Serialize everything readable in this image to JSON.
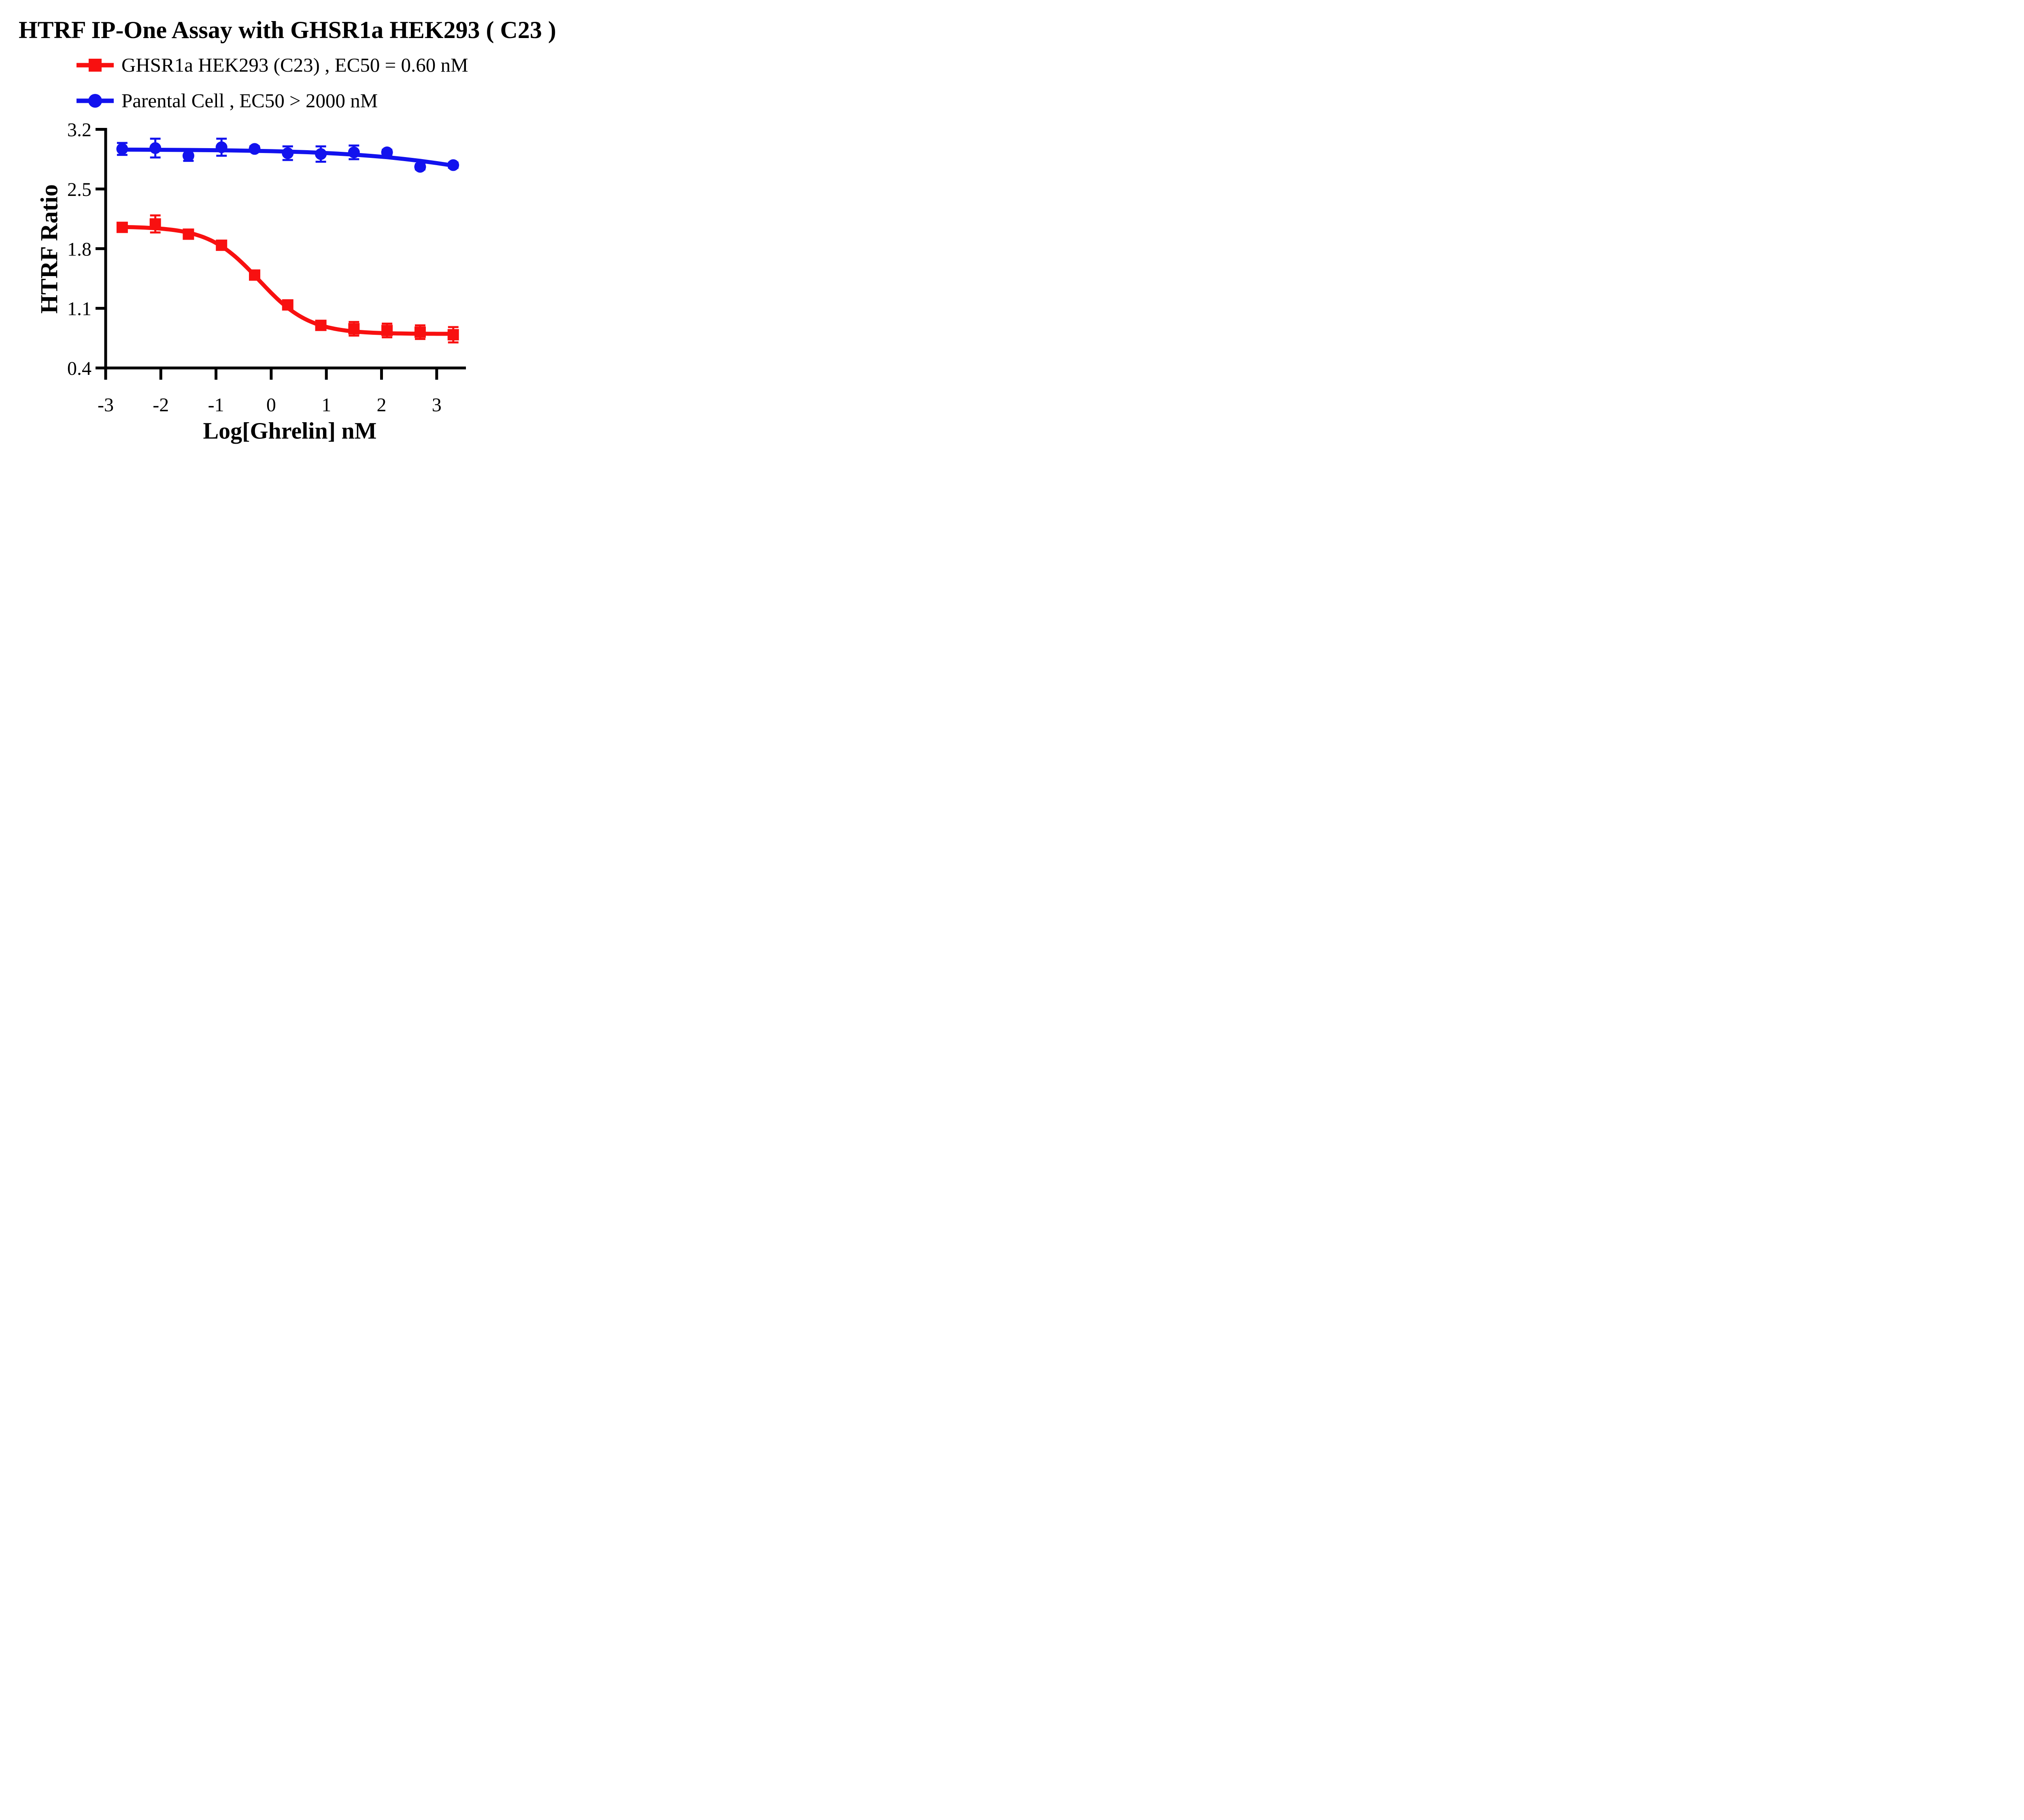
{
  "title": "HTRF IP-One Assay with GHSR1a HEK293 ( C23 )",
  "legend": {
    "items": [
      {
        "label": "GHSR1a HEK293 (C23) ,  EC50 = 0.60 nM",
        "marker": "red-square"
      },
      {
        "label": "Parental Cell ,  EC50 > 2000 nM",
        "marker": "blue-circle"
      }
    ]
  },
  "chart_data": {
    "type": "line",
    "title": "HTRF IP-One Assay with GHSR1a HEK293 ( C23 )",
    "xlabel": "Log[Ghrelin] nM",
    "ylabel": "HTRF Ratio",
    "xlim": [
      -3,
      3.55
    ],
    "ylim": [
      0.4,
      3.2
    ],
    "x_ticks": [
      -3,
      -2,
      -1,
      0,
      1,
      2,
      3
    ],
    "y_ticks": [
      3.2,
      2.5,
      1.8,
      1.1,
      0.4
    ],
    "grid": false,
    "legend_position": "top-left",
    "axis_color": "#000000",
    "series": [
      {
        "name": "GHSR1a HEK293 (C23)",
        "ec50": "EC50 = 0.60 nM",
        "color": "#F81010",
        "marker": "square",
        "x": [
          -2.7,
          -2.1,
          -1.5,
          -0.9,
          -0.3,
          0.3,
          0.9,
          1.5,
          2.1,
          2.7,
          3.3
        ],
        "y": [
          2.05,
          2.09,
          1.97,
          1.84,
          1.49,
          1.14,
          0.9,
          0.86,
          0.84,
          0.82,
          0.79
        ],
        "err": [
          0.04,
          0.1,
          0.04,
          0.04,
          0.04,
          0.04,
          0.05,
          0.08,
          0.08,
          0.08,
          0.09
        ],
        "fit": {
          "type": "4PL",
          "top": 2.06,
          "bottom": 0.8,
          "logEC50": -0.22,
          "hill": 0.95
        }
      },
      {
        "name": "Parental Cell",
        "ec50": "EC50 > 2000 nM",
        "color": "#1212EE",
        "marker": "circle",
        "x": [
          -2.7,
          -2.1,
          -1.5,
          -0.9,
          -0.3,
          0.3,
          0.9,
          1.5,
          2.1,
          2.7,
          3.3
        ],
        "y": [
          2.97,
          2.98,
          2.89,
          2.99,
          2.97,
          2.92,
          2.91,
          2.93,
          2.93,
          2.76,
          2.78
        ],
        "err": [
          0.07,
          0.11,
          0.06,
          0.1,
          0.03,
          0.08,
          0.09,
          0.08,
          0.03,
          0.03,
          0.03
        ],
        "fit": {
          "type": "points",
          "points": [
            [
              -2.7,
              2.962
            ],
            [
              -2.4,
              2.961
            ],
            [
              -2.1,
              2.96
            ],
            [
              -1.8,
              2.959
            ],
            [
              -1.5,
              2.958
            ],
            [
              -1.2,
              2.956
            ],
            [
              -0.9,
              2.954
            ],
            [
              -0.6,
              2.951
            ],
            [
              -0.3,
              2.948
            ],
            [
              0.0,
              2.944
            ],
            [
              0.3,
              2.939
            ],
            [
              0.6,
              2.933
            ],
            [
              0.9,
              2.925
            ],
            [
              1.2,
              2.915
            ],
            [
              1.5,
              2.903
            ],
            [
              1.8,
              2.889
            ],
            [
              2.1,
              2.873
            ],
            [
              2.4,
              2.853
            ],
            [
              2.7,
              2.83
            ],
            [
              3.0,
              2.804
            ],
            [
              3.3,
              2.775
            ]
          ]
        }
      }
    ]
  }
}
